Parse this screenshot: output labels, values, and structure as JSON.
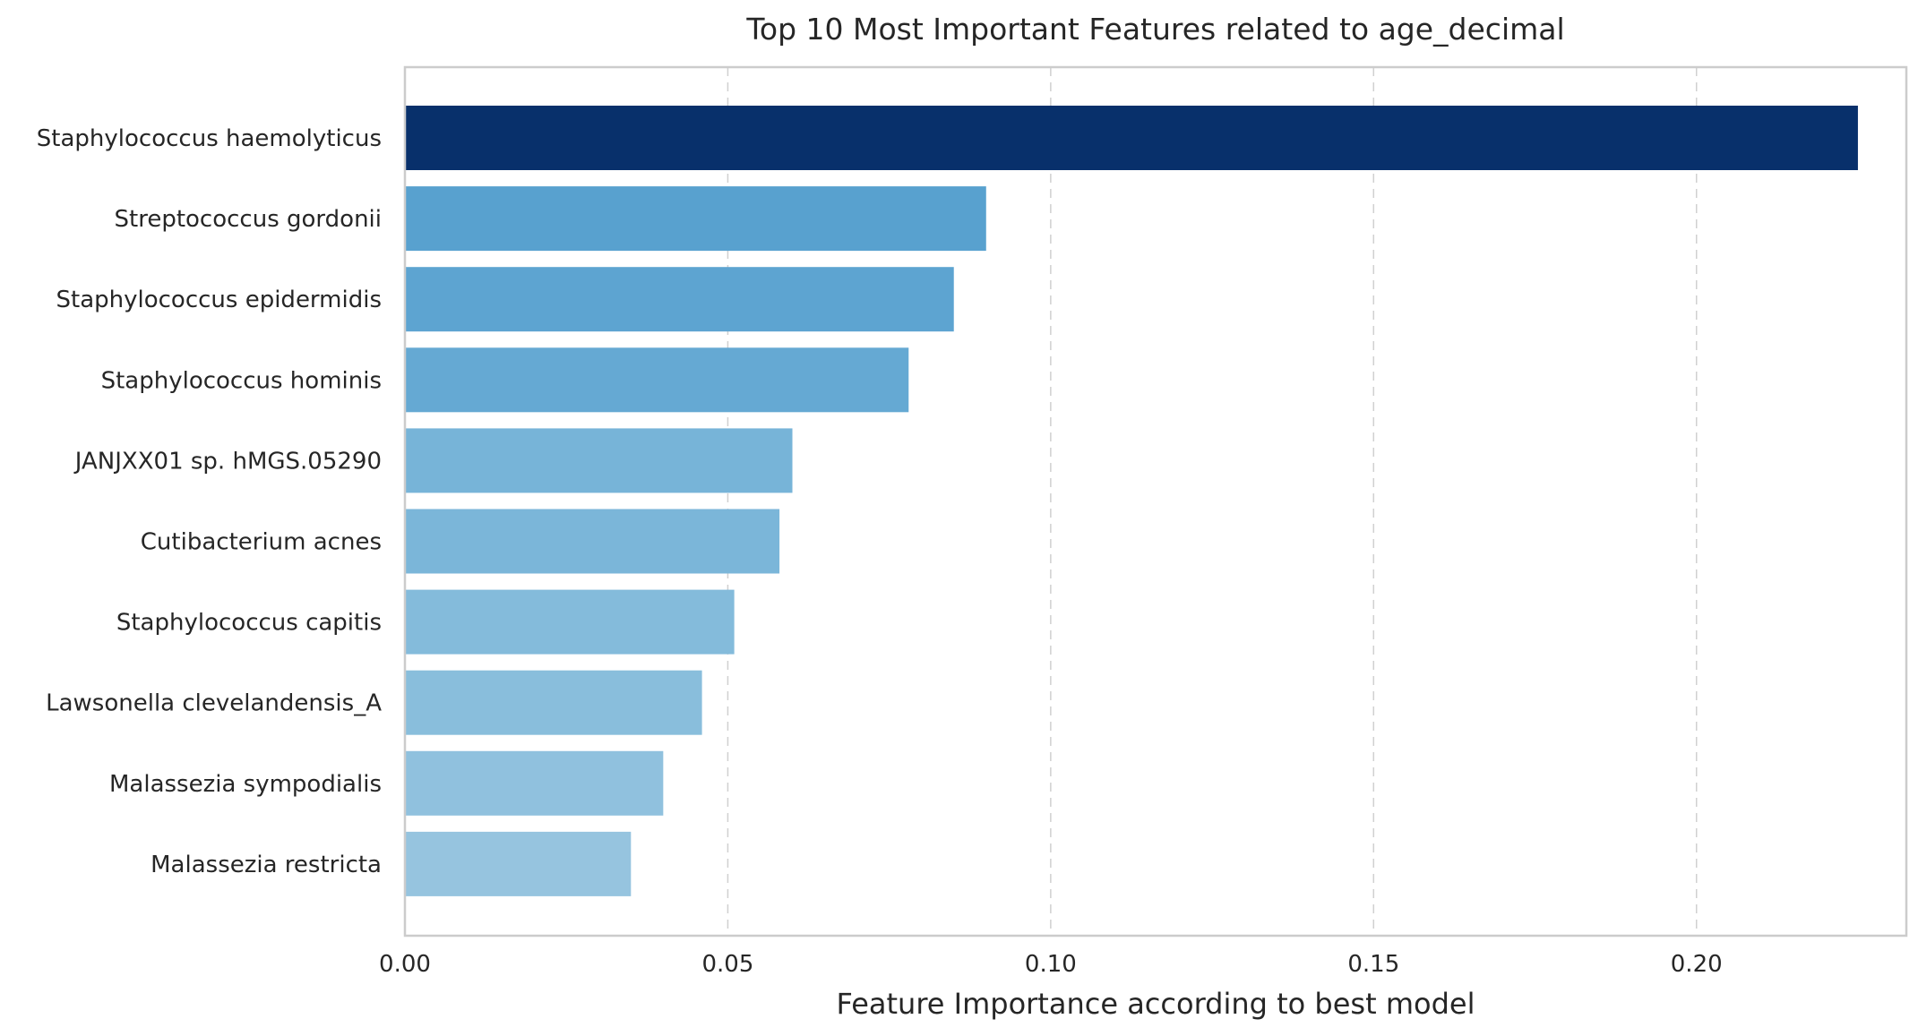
{
  "chart_data": {
    "type": "bar",
    "orientation": "horizontal",
    "title": "Top 10 Most Important Features related to age_decimal",
    "xlabel": "Feature Importance according to best model",
    "ylabel": "",
    "xlim": [
      0,
      0.2325
    ],
    "xticks": [
      0.0,
      0.05,
      0.1,
      0.15,
      0.2
    ],
    "xtick_labels": [
      "0.00",
      "0.05",
      "0.10",
      "0.15",
      "0.20"
    ],
    "grid": "x dashed",
    "legend": "none",
    "categories": [
      "Staphylococcus haemolyticus",
      "Streptococcus gordonii",
      "Staphylococcus epidermidis",
      "Staphylococcus hominis",
      "JANJXX01 sp. hMGS.05290",
      "Cutibacterium acnes",
      "Staphylococcus capitis",
      "Lawsonella clevelandensis_A",
      "Malassezia sympodialis",
      "Malassezia restricta"
    ],
    "values": [
      0.225,
      0.09,
      0.085,
      0.078,
      0.06,
      0.058,
      0.051,
      0.046,
      0.04,
      0.035
    ],
    "colors": [
      "#08306b",
      "#58a1cf",
      "#5da4d1",
      "#65a9d3",
      "#77b4d8",
      "#7bb6d9",
      "#84bbdb",
      "#89bedc",
      "#90c1de",
      "#96c4df"
    ]
  }
}
